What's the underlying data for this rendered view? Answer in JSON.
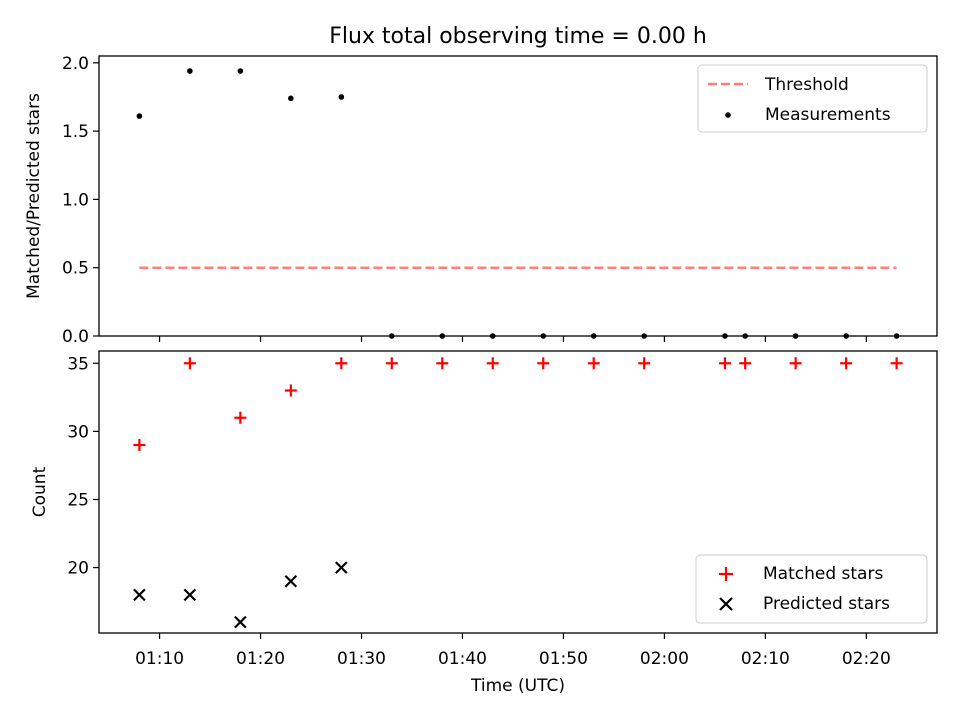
{
  "figure": {
    "title": "Flux total observing time = 0.00 h",
    "xlabel": "Time (UTC)"
  },
  "chart_data": [
    {
      "type": "scatter",
      "panel": "top",
      "ylabel": "Matched/Predicted stars",
      "xlim": [
        "01:04",
        "02:27"
      ],
      "ylim": [
        0,
        2.05
      ],
      "yticks": [
        "0.0",
        "0.5",
        "1.0",
        "1.5",
        "2.0"
      ],
      "legend_position": "top-right",
      "series": [
        {
          "name": "Threshold",
          "kind": "dashed-line",
          "color": "#ff7f7f",
          "points": [
            {
              "x": "01:08",
              "y": 0.5
            },
            {
              "x": "02:23",
              "y": 0.5
            }
          ]
        },
        {
          "name": "Measurements",
          "kind": "dot",
          "color": "#000000",
          "points": [
            {
              "x": "01:08",
              "y": 1.61
            },
            {
              "x": "01:13",
              "y": 1.94
            },
            {
              "x": "01:18",
              "y": 1.94
            },
            {
              "x": "01:23",
              "y": 1.74
            },
            {
              "x": "01:28",
              "y": 1.75
            },
            {
              "x": "01:33",
              "y": 0.0
            },
            {
              "x": "01:38",
              "y": 0.0
            },
            {
              "x": "01:43",
              "y": 0.0
            },
            {
              "x": "01:48",
              "y": 0.0
            },
            {
              "x": "01:53",
              "y": 0.0
            },
            {
              "x": "01:58",
              "y": 0.0
            },
            {
              "x": "02:06",
              "y": 0.0
            },
            {
              "x": "02:08",
              "y": 0.0
            },
            {
              "x": "02:13",
              "y": 0.0
            },
            {
              "x": "02:18",
              "y": 0.0
            },
            {
              "x": "02:23",
              "y": 0.0
            }
          ]
        }
      ]
    },
    {
      "type": "scatter",
      "panel": "bottom",
      "ylabel": "Count",
      "xlim": [
        "01:04",
        "02:27"
      ],
      "ylim": [
        15.2,
        35.9
      ],
      "yticks": [
        "20",
        "25",
        "30",
        "35"
      ],
      "xticks": [
        "01:10",
        "01:20",
        "01:30",
        "01:40",
        "01:50",
        "02:00",
        "02:10",
        "02:20"
      ],
      "legend_position": "bottom-right",
      "series": [
        {
          "name": "Matched stars",
          "marker": "plus",
          "color": "#ff0000",
          "points": [
            {
              "x": "01:08",
              "y": 29
            },
            {
              "x": "01:13",
              "y": 35
            },
            {
              "x": "01:18",
              "y": 31
            },
            {
              "x": "01:23",
              "y": 33
            },
            {
              "x": "01:28",
              "y": 35
            },
            {
              "x": "01:33",
              "y": 35
            },
            {
              "x": "01:38",
              "y": 35
            },
            {
              "x": "01:43",
              "y": 35
            },
            {
              "x": "01:48",
              "y": 35
            },
            {
              "x": "01:53",
              "y": 35
            },
            {
              "x": "01:58",
              "y": 35
            },
            {
              "x": "02:06",
              "y": 35
            },
            {
              "x": "02:08",
              "y": 35
            },
            {
              "x": "02:13",
              "y": 35
            },
            {
              "x": "02:18",
              "y": 35
            },
            {
              "x": "02:23",
              "y": 35
            }
          ]
        },
        {
          "name": "Predicted stars",
          "marker": "x",
          "color": "#000000",
          "points": [
            {
              "x": "01:08",
              "y": 18
            },
            {
              "x": "01:13",
              "y": 18
            },
            {
              "x": "01:18",
              "y": 16
            },
            {
              "x": "01:23",
              "y": 19
            },
            {
              "x": "01:28",
              "y": 20
            }
          ]
        }
      ]
    }
  ]
}
